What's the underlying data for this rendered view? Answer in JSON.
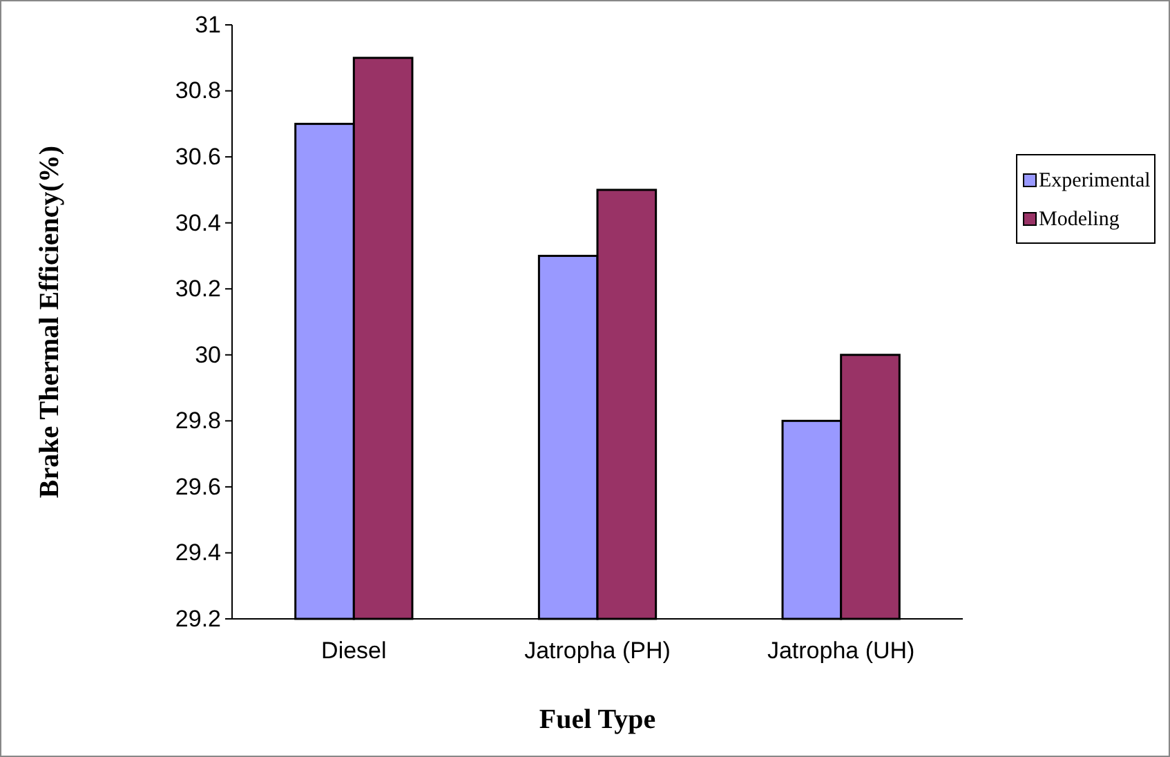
{
  "chart_data": {
    "type": "bar",
    "xlabel": "Fuel Type",
    "ylabel": "Brake Thermal Efficiency(%)",
    "categories": [
      "Diesel",
      "Jatropha (PH)",
      "Jatropha (UH)"
    ],
    "series": [
      {
        "name": "Experimental",
        "color": "#9999ff",
        "values": [
          30.7,
          30.3,
          29.8
        ]
      },
      {
        "name": "Modeling",
        "color": "#993366",
        "values": [
          30.9,
          30.5,
          30.0
        ]
      }
    ],
    "ylim": [
      29.2,
      31
    ],
    "yticks": [
      29.2,
      29.4,
      29.6,
      29.8,
      30,
      30.2,
      30.4,
      30.6,
      30.8,
      31
    ],
    "grid": false,
    "legend": "right"
  }
}
